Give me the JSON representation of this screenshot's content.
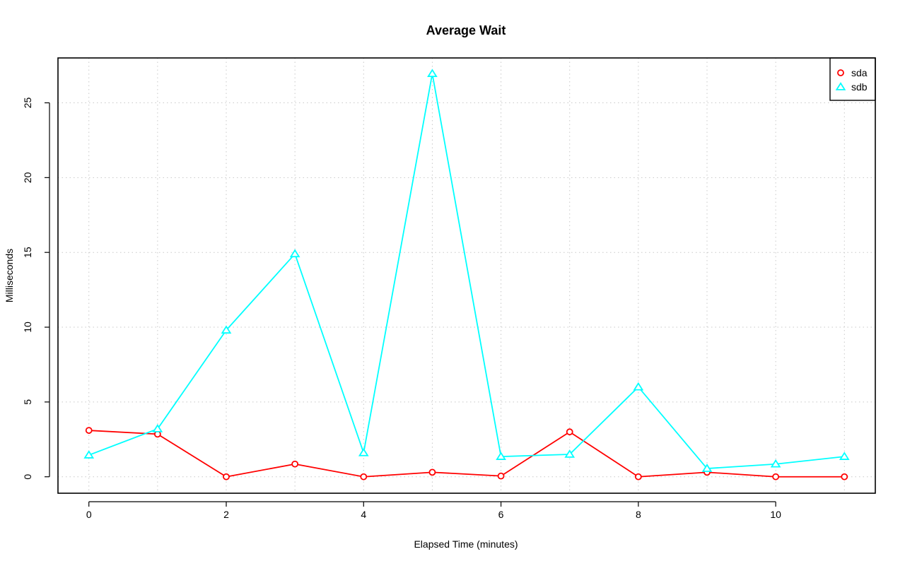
{
  "chart_data": {
    "type": "line",
    "title": "Average Wait",
    "xlabel": "Elapsed Time (minutes)",
    "ylabel": "Milliseconds",
    "xlim": [
      -0.45,
      11.45
    ],
    "ylim": [
      -1.1,
      28.0
    ],
    "x_ticks": [
      0,
      2,
      4,
      6,
      8,
      10
    ],
    "y_ticks": [
      0,
      5,
      10,
      15,
      20,
      25
    ],
    "grid": true,
    "legend_position": "top-right",
    "x": [
      0,
      1,
      2,
      3,
      4,
      5,
      6,
      7,
      8,
      9,
      10,
      11
    ],
    "series": [
      {
        "name": "sda",
        "color": "#ff0000",
        "marker": "circle",
        "values": [
          3.1,
          2.85,
          0.0,
          0.85,
          0.0,
          0.3,
          0.05,
          3.0,
          0.0,
          0.3,
          0.0,
          0.0
        ]
      },
      {
        "name": "sdb",
        "color": "#00ffff",
        "marker": "triangle",
        "values": [
          1.45,
          3.2,
          9.8,
          14.9,
          1.6,
          26.95,
          1.35,
          1.5,
          6.0,
          0.55,
          0.85,
          1.35
        ]
      }
    ]
  }
}
